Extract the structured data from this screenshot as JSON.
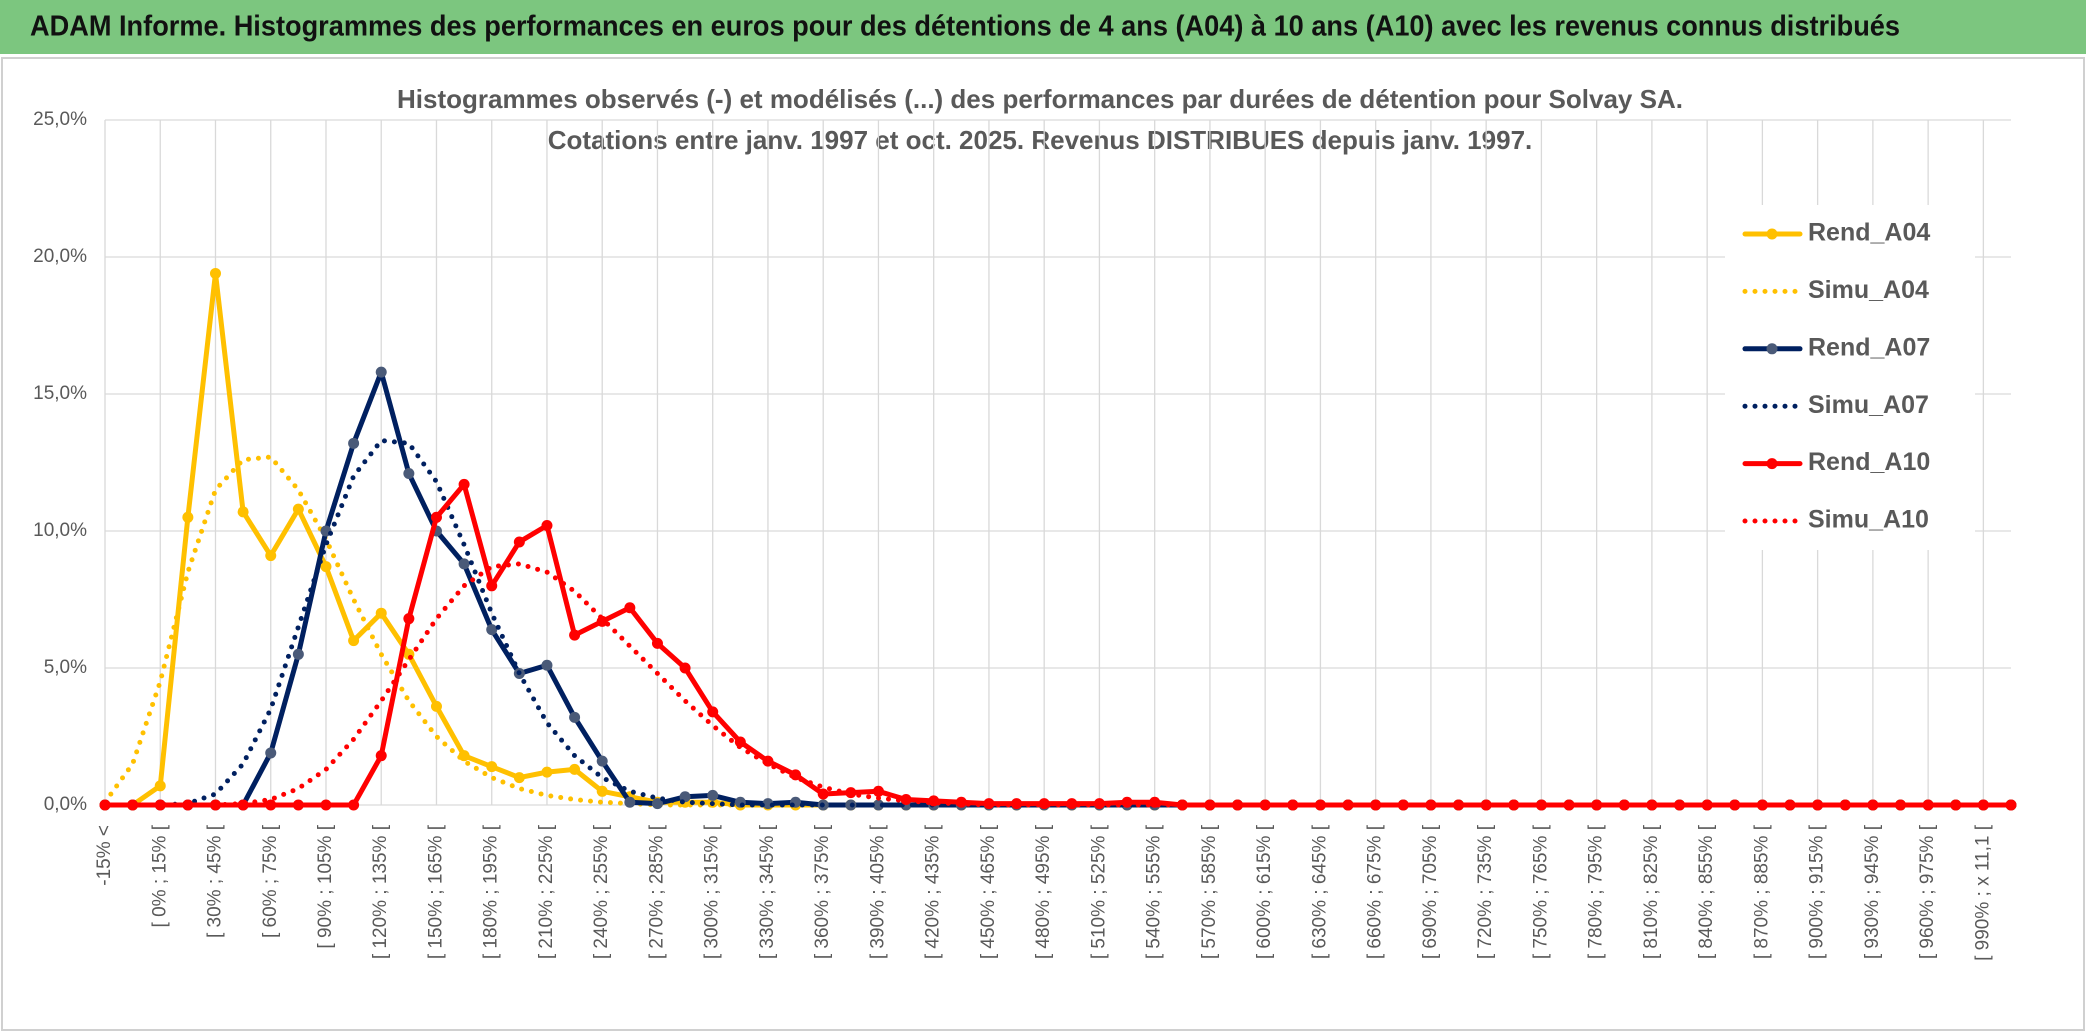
{
  "header": {
    "title": "ADAM Informe. Histogrammes des performances en euros pour des détentions de 4 ans (A04) à 10 ans (A10) avec les revenus connus distribués"
  },
  "chart_data": {
    "type": "line",
    "title": "Histogrammes observés (-) et modélisés (...) des performances par durées de détention pour Solvay SA.",
    "subtitle": "Cotations entre janv. 1997 et oct. 2025. Revenus DISTRIBUES depuis janv. 1997.",
    "categories": [
      "-15% <",
      null,
      "[ 0% ; 15% [",
      null,
      "[ 30% ; 45% [",
      null,
      "[ 60% ; 75% [",
      null,
      "[ 90% ; 105% [",
      null,
      "[ 120% ; 135% [",
      null,
      "[ 150% ; 165% [",
      null,
      "[ 180% ; 195% [",
      null,
      "[ 210% ; 225% [",
      null,
      "[ 240% ; 255% [",
      null,
      "[ 270% ; 285% [",
      null,
      "[ 300% ; 315% [",
      null,
      "[ 330% ; 345% [",
      null,
      "[ 360% ; 375% [",
      null,
      "[ 390% ; 405% [",
      null,
      "[ 420% ; 435% [",
      null,
      "[ 450% ; 465% [",
      null,
      "[ 480% ; 495% [",
      null,
      "[ 510% ; 525% [",
      null,
      "[ 540% ; 555% [",
      null,
      "[ 570% ; 585% [",
      null,
      "[ 600% ; 615% [",
      null,
      "[ 630% ; 645% [",
      null,
      "[ 660% ; 675% [",
      null,
      "[ 690% ; 705% [",
      null,
      "[ 720% ; 735% [",
      null,
      "[ 750% ; 765% [",
      null,
      "[ 780% ; 795% [",
      null,
      "[ 810% ; 825% [",
      null,
      "[ 840% ; 855% [",
      null,
      "[ 870% ; 885% [",
      null,
      "[ 900% ; 915% [",
      null,
      "[ 930% ; 945% [",
      null,
      "[ 960% ; 975% [",
      null,
      "[ 990% ; x 11,1 [",
      null
    ],
    "series": [
      {
        "name": "Rend_A04",
        "color": "#FFC000",
        "marker_color": "#FFC000",
        "style": "solid",
        "markers": true,
        "values": [
          0,
          0,
          0.7,
          10.5,
          19.4,
          10.7,
          9.1,
          10.8,
          8.7,
          6.0,
          7.0,
          5.5,
          3.6,
          1.8,
          1.4,
          1.0,
          1.2,
          1.3,
          0.5,
          0.3,
          0.1,
          0.1,
          0.1,
          0,
          0,
          0,
          0,
          0,
          0,
          0,
          0,
          0,
          0,
          0,
          0,
          0,
          0,
          0,
          0,
          0,
          0,
          0,
          0,
          0,
          0,
          0,
          0,
          0,
          0,
          0,
          0,
          0,
          0,
          0,
          0,
          0,
          0,
          0,
          0,
          0,
          0,
          0,
          0,
          0,
          0,
          0,
          0,
          0,
          0,
          0
        ]
      },
      {
        "name": "Simu_A04",
        "color": "#FFC000",
        "style": "dotted",
        "markers": false,
        "values": [
          0.1,
          1.5,
          4.5,
          8.5,
          11.5,
          12.6,
          12.7,
          11.5,
          9.7,
          7.5,
          5.5,
          3.8,
          2.5,
          1.6,
          1.0,
          0.6,
          0.35,
          0.2,
          0.1,
          0.05,
          0,
          0,
          0,
          0,
          0,
          0,
          0,
          0,
          0,
          0,
          0,
          0,
          0,
          0,
          0,
          0,
          0,
          0,
          0,
          0,
          0,
          0,
          0,
          0,
          0,
          0,
          0,
          0,
          0,
          0,
          0,
          0,
          0,
          0,
          0,
          0,
          0,
          0,
          0,
          0,
          0,
          0,
          0,
          0,
          0,
          0,
          0,
          0,
          0,
          0
        ]
      },
      {
        "name": "Rend_A07",
        "color": "#002060",
        "marker_color": "#4a5a78",
        "style": "solid",
        "markers": true,
        "values": [
          0,
          0,
          0,
          0,
          0,
          0,
          1.9,
          5.5,
          10.0,
          13.2,
          15.8,
          12.1,
          10.0,
          8.8,
          6.4,
          4.8,
          5.1,
          3.2,
          1.6,
          0.1,
          0.05,
          0.3,
          0.35,
          0.1,
          0.05,
          0.1,
          0,
          0,
          0,
          0,
          0,
          0,
          0,
          0,
          0,
          0,
          0,
          0,
          0,
          0,
          0,
          0,
          0,
          0,
          0,
          0,
          0,
          0,
          0,
          0,
          0,
          0,
          0,
          0,
          0,
          0,
          0,
          0,
          0,
          0,
          0,
          0,
          0,
          0,
          0,
          0,
          0,
          0,
          0,
          0
        ]
      },
      {
        "name": "Simu_A07",
        "color": "#002060",
        "style": "dotted",
        "markers": false,
        "values": [
          0,
          0,
          0,
          0.05,
          0.4,
          1.5,
          3.5,
          6.5,
          9.5,
          12.0,
          13.3,
          13.2,
          11.8,
          9.5,
          7.0,
          4.8,
          3.0,
          1.8,
          1.0,
          0.5,
          0.25,
          0.1,
          0.05,
          0,
          0,
          0,
          0,
          0,
          0,
          0,
          0,
          0,
          0,
          0,
          0,
          0,
          0,
          0,
          0,
          0,
          0,
          0,
          0,
          0,
          0,
          0,
          0,
          0,
          0,
          0,
          0,
          0,
          0,
          0,
          0,
          0,
          0,
          0,
          0,
          0,
          0,
          0,
          0,
          0,
          0,
          0,
          0,
          0,
          0,
          0
        ]
      },
      {
        "name": "Rend_A10",
        "color": "#FF0000",
        "marker_color": "#FF0000",
        "style": "solid",
        "markers": true,
        "values": [
          0,
          0,
          0,
          0,
          0,
          0,
          0,
          0,
          0,
          0,
          1.8,
          6.8,
          10.5,
          11.7,
          8.0,
          9.6,
          10.2,
          6.2,
          6.7,
          7.2,
          5.9,
          5.0,
          3.4,
          2.3,
          1.6,
          1.1,
          0.4,
          0.45,
          0.5,
          0.2,
          0.15,
          0.1,
          0.05,
          0.05,
          0.05,
          0.05,
          0.05,
          0.1,
          0.1,
          0,
          0,
          0,
          0,
          0,
          0,
          0,
          0,
          0,
          0,
          0,
          0,
          0,
          0,
          0,
          0,
          0,
          0,
          0,
          0,
          0,
          0,
          0,
          0,
          0,
          0,
          0,
          0,
          0,
          0,
          0
        ]
      },
      {
        "name": "Simu_A10",
        "color": "#FF0000",
        "style": "dotted",
        "markers": false,
        "values": [
          0,
          0,
          0,
          0,
          0,
          0.05,
          0.2,
          0.6,
          1.3,
          2.4,
          3.8,
          5.3,
          6.8,
          8.0,
          8.7,
          8.8,
          8.5,
          7.8,
          6.8,
          5.8,
          4.8,
          3.8,
          2.9,
          2.1,
          1.5,
          1.0,
          0.65,
          0.4,
          0.25,
          0.15,
          0.08,
          0.04,
          0,
          0,
          0,
          0,
          0,
          0,
          0,
          0,
          0,
          0,
          0,
          0,
          0,
          0,
          0,
          0,
          0,
          0,
          0,
          0,
          0,
          0,
          0,
          0,
          0,
          0,
          0,
          0,
          0,
          0,
          0,
          0,
          0,
          0,
          0,
          0,
          0,
          0
        ]
      }
    ],
    "ylim": [
      0,
      25
    ],
    "yticks": [
      {
        "value": 0,
        "label": "0,0%"
      },
      {
        "value": 5,
        "label": "5,0%"
      },
      {
        "value": 10,
        "label": "10,0%"
      },
      {
        "value": 15,
        "label": "15,0%"
      },
      {
        "value": 20,
        "label": "20,0%"
      },
      {
        "value": 25,
        "label": "25,0%"
      }
    ],
    "grid": true,
    "legend": "right"
  }
}
